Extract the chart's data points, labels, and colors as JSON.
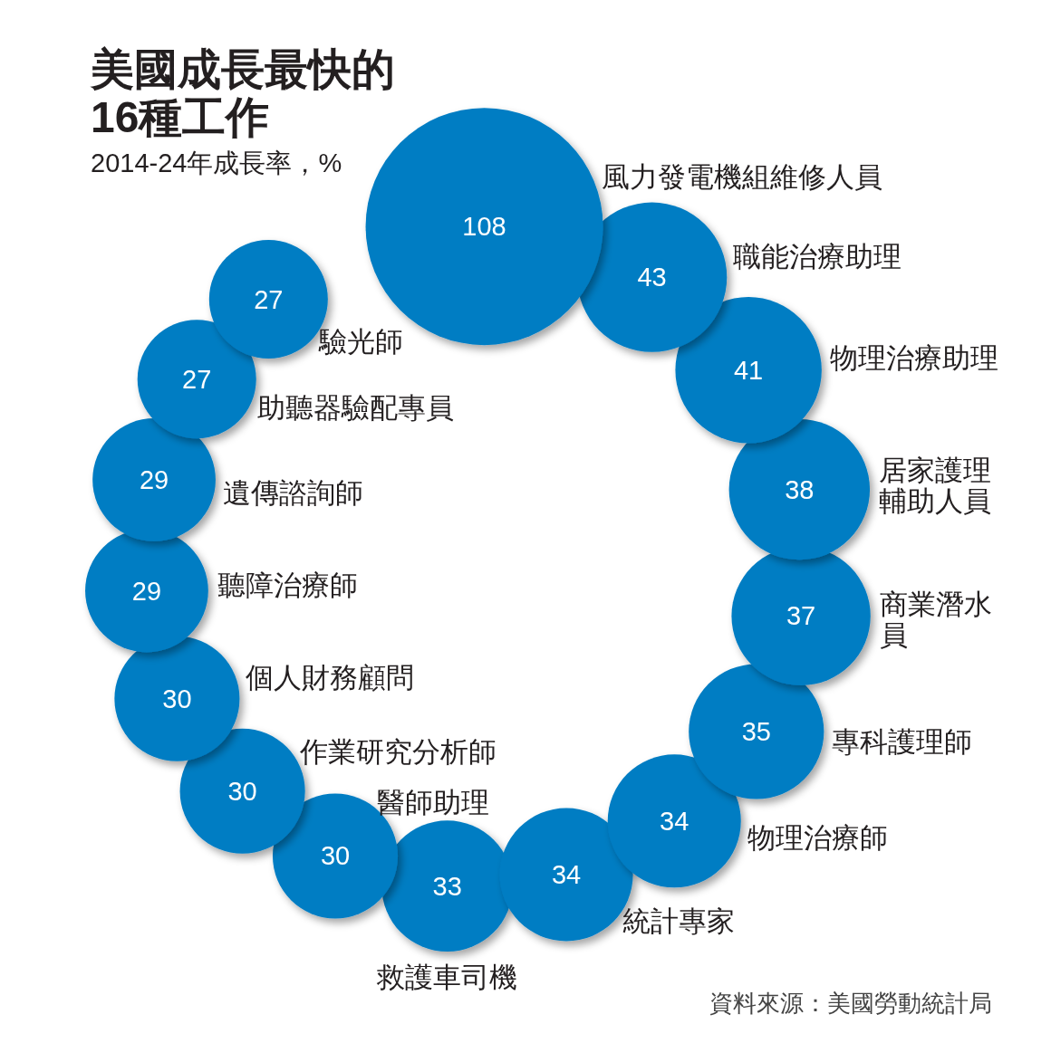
{
  "chart_data": {
    "type": "other",
    "title": "美國成長最快的16種工作",
    "subtitle": "2014-24年成長率，%",
    "categories": [
      "風力發電機組維修人員",
      "職能治療助理",
      "物理治療助理",
      "居家護理輔助人員",
      "商業潛水員",
      "專科護理師",
      "物理治療師",
      "統計專家",
      "救護車司機",
      "醫師助理",
      "作業研究分析師",
      "個人財務顧問",
      "聽障治療師",
      "遺傳諮詢師",
      "助聽器驗配專員",
      "驗光師"
    ],
    "values": [
      108,
      43,
      41,
      38,
      37,
      35,
      34,
      34,
      33,
      30,
      30,
      30,
      29,
      29,
      27,
      27
    ],
    "color": "#007dc3",
    "data_labels": true,
    "annotations": [
      "資料來源：美國勞動統計局"
    ]
  }
}
